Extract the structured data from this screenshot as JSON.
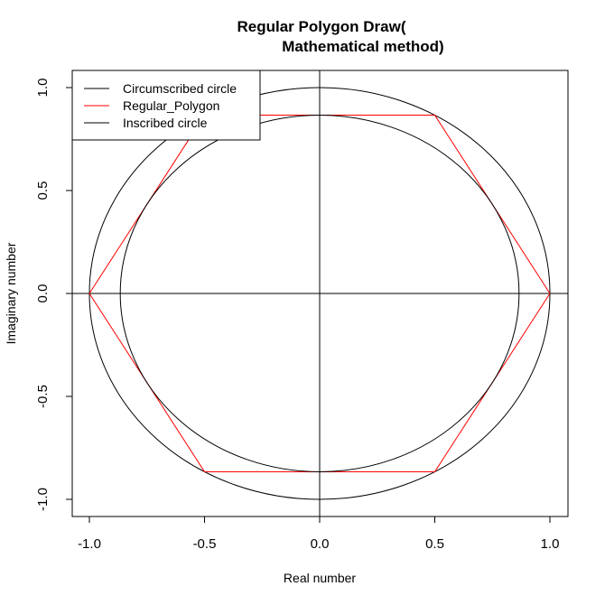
{
  "chart_data": {
    "type": "line",
    "title_line1": "Regular Polygon Draw(",
    "title_line2": "Mathematical method)",
    "xlabel": "Real number",
    "ylabel": "Imaginary number",
    "xlim": [
      -1.0,
      1.0
    ],
    "ylim": [
      -1.0,
      1.0
    ],
    "xticks": [
      -1.0,
      -0.5,
      0.0,
      0.5,
      1.0
    ],
    "yticks": [
      -1.0,
      -0.5,
      0.0,
      0.5,
      1.0
    ],
    "xtick_labels": [
      "-1.0",
      "-0.5",
      "0.0",
      "0.5",
      "1.0"
    ],
    "ytick_labels": [
      "-1.0",
      "-0.5",
      "0.0",
      "0.5",
      "1.0"
    ],
    "grid": false,
    "legend_position": "top-left",
    "series": [
      {
        "name": "Circumscribed circle",
        "color": "#000000",
        "shape": "circle",
        "center": [
          0,
          0
        ],
        "radius": 1.0
      },
      {
        "name": "Regular_Polygon",
        "color": "#ff0000",
        "shape": "polygon",
        "sides": 6,
        "x": [
          1.0,
          0.5,
          -0.5,
          -1.0,
          -0.5,
          0.5,
          1.0
        ],
        "y": [
          0.0,
          0.866,
          0.866,
          0.0,
          -0.866,
          -0.866,
          0.0
        ]
      },
      {
        "name": "Inscribed circle",
        "color": "#000000",
        "shape": "circle",
        "center": [
          0,
          0
        ],
        "radius": 0.866
      }
    ],
    "reference_lines": [
      {
        "axis": "x",
        "value": 0.0,
        "color": "#000000"
      },
      {
        "axis": "y",
        "value": 0.0,
        "color": "#000000"
      }
    ]
  }
}
